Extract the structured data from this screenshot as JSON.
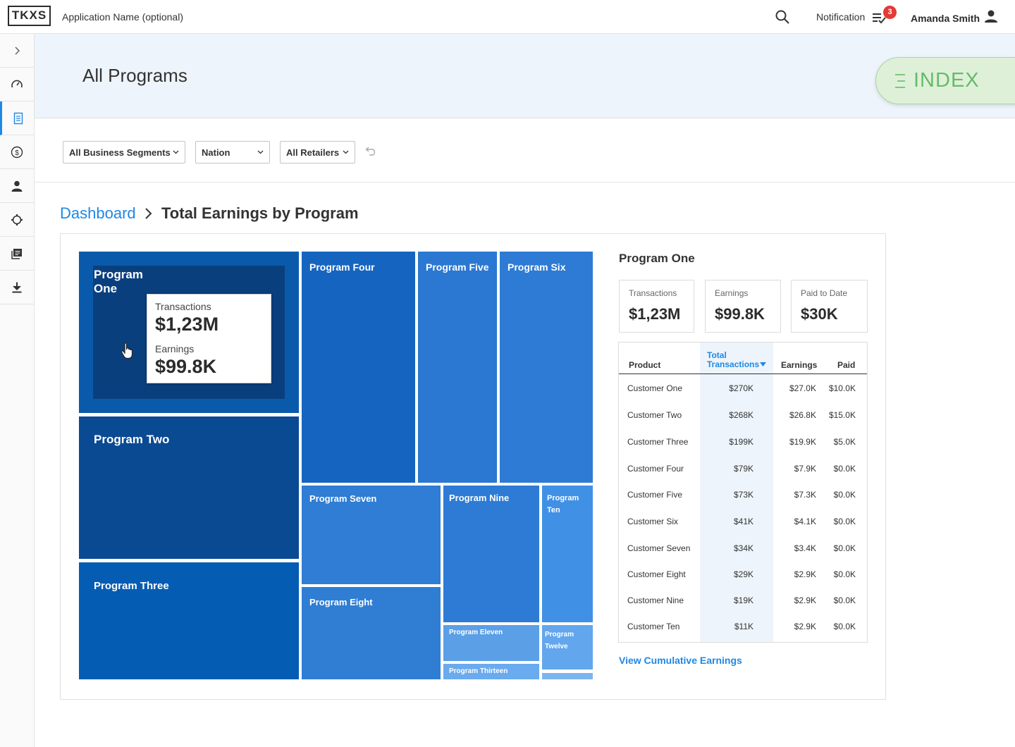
{
  "topbar": {
    "logo": "TKXS",
    "app_name": "Application Name (optional)",
    "notification_label": "Notification",
    "notification_count": "3",
    "user_name": "Amanda Smith"
  },
  "sidebar": {
    "items": [
      {
        "icon": "chevron-right-icon"
      },
      {
        "icon": "gauge-icon"
      },
      {
        "icon": "document-icon",
        "active": true
      },
      {
        "icon": "dollar-icon"
      },
      {
        "icon": "person-icon"
      },
      {
        "icon": "settings-icon"
      },
      {
        "icon": "library-icon"
      },
      {
        "icon": "download-icon"
      }
    ]
  },
  "header": {
    "title": "All Programs",
    "index_label": "INDEX"
  },
  "filters": {
    "segment": "All Business Segments",
    "region": "Nation",
    "retailer": "All Retailers"
  },
  "breadcrumb": {
    "parent": "Dashboard",
    "current": "Total Earnings by Program"
  },
  "treemap": {
    "programs": [
      {
        "label": "Program One",
        "color": "#0a5aab"
      },
      {
        "label": "Program Two",
        "color": "#0a4a93"
      },
      {
        "label": "Program Three",
        "color": "#055cb3"
      },
      {
        "label": "Program Four",
        "color": "#1565c0"
      },
      {
        "label": "Program Five",
        "color": "#2b78d2"
      },
      {
        "label": "Program Six",
        "color": "#2d7bd4"
      },
      {
        "label": "Program Seven",
        "color": "#2f7dd4"
      },
      {
        "label": "Program Eight",
        "color": "#2f7ed4"
      },
      {
        "label": "Program Nine",
        "color": "#2d7bd4"
      },
      {
        "label": "Program Ten",
        "color": "#4090e6"
      },
      {
        "label": "Program Eleven",
        "color": "#5b9fe6"
      },
      {
        "label": "Program Twelve",
        "color": "#62a6ee"
      },
      {
        "label": "Program Thirteen",
        "color": "#6aaaee"
      }
    ],
    "tooltip": {
      "transactions_label": "Transactions",
      "transactions_value": "$1,23M",
      "earnings_label": "Earnings",
      "earnings_value": "$99.8K"
    }
  },
  "detail": {
    "title": "Program One",
    "kpis": [
      {
        "label": "Transactions",
        "value": "$1,23M"
      },
      {
        "label": "Earnings",
        "value": "$99.8K"
      },
      {
        "label": "Paid to Date",
        "value": "$30K"
      }
    ],
    "table": {
      "headers": {
        "product": "Product",
        "total_line1": "Total",
        "total_line2": "Transactions",
        "earnings": "Earnings",
        "paid": "Paid"
      },
      "rows": [
        {
          "product": "Customer One",
          "total": "$270K",
          "earnings": "$27.0K",
          "paid": "$10.0K"
        },
        {
          "product": "Customer Two",
          "total": "$268K",
          "earnings": "$26.8K",
          "paid": "$15.0K"
        },
        {
          "product": "Customer Three",
          "total": "$199K",
          "earnings": "$19.9K",
          "paid": "$5.0K"
        },
        {
          "product": "Customer Four",
          "total": "$79K",
          "earnings": "$7.9K",
          "paid": "$0.0K"
        },
        {
          "product": "Customer Five",
          "total": "$73K",
          "earnings": "$7.3K",
          "paid": "$0.0K"
        },
        {
          "product": "Customer Six",
          "total": "$41K",
          "earnings": "$4.1K",
          "paid": "$0.0K"
        },
        {
          "product": "Customer Seven",
          "total": "$34K",
          "earnings": "$3.4K",
          "paid": "$0.0K"
        },
        {
          "product": "Customer Eight",
          "total": "$29K",
          "earnings": "$2.9K",
          "paid": "$0.0K"
        },
        {
          "product": "Customer Nine",
          "total": "$19K",
          "earnings": "$2.9K",
          "paid": "$0.0K"
        },
        {
          "product": "Customer Ten",
          "total": "$11K",
          "earnings": "$2.9K",
          "paid": "$0.0K"
        }
      ]
    },
    "link": "View Cumulative Earnings"
  },
  "colors": {
    "accent": "#1e88e5",
    "index_green": "#66bb6a",
    "badge": "#e53935"
  }
}
